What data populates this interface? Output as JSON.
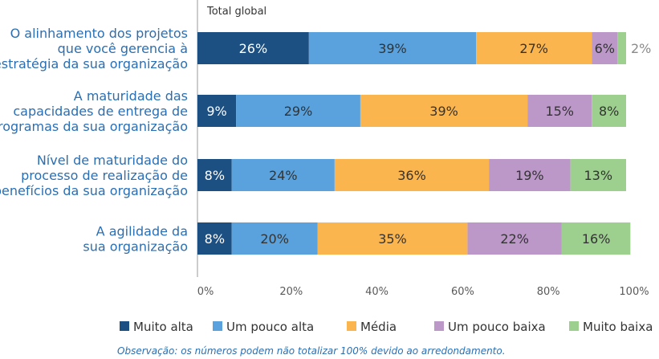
{
  "chart_data": {
    "type": "bar",
    "orientation": "horizontal",
    "stacked": true,
    "subtitle": "Total global",
    "categories": [
      [
        "O alinhamento dos projetos",
        "que você gerencia à",
        "estratégia da sua organização"
      ],
      [
        "A maturidade das",
        "capacidades de entrega de",
        "programas da sua organização"
      ],
      [
        "Nível de maturidade do",
        "processo de realização de",
        "benefícios da sua organização"
      ],
      [
        "A agilidade da",
        "sua organização"
      ]
    ],
    "series": [
      {
        "name": "Muito alta",
        "color": "#1c4f82",
        "values": [
          26,
          9,
          8,
          8
        ]
      },
      {
        "name": "Um pouco alta",
        "color": "#5aa2dd",
        "values": [
          39,
          29,
          24,
          20
        ]
      },
      {
        "name": "Média",
        "color": "#fbb54f",
        "values": [
          27,
          39,
          36,
          35
        ]
      },
      {
        "name": "Um pouco baixa",
        "color": "#bb98c8",
        "values": [
          6,
          15,
          19,
          22
        ]
      },
      {
        "name": "Muito baixa",
        "color": "#9dcf8f",
        "values": [
          2,
          8,
          13,
          16
        ]
      }
    ],
    "value_suffix": "%",
    "xlim": [
      0,
      100
    ],
    "x_ticks": [
      "0%",
      "20%",
      "40%",
      "60%",
      "80%",
      "100%"
    ],
    "grid": false,
    "legend_position": "bottom",
    "note": "Observação: os números podem não totalizar 100% devido ao arredondamento."
  }
}
